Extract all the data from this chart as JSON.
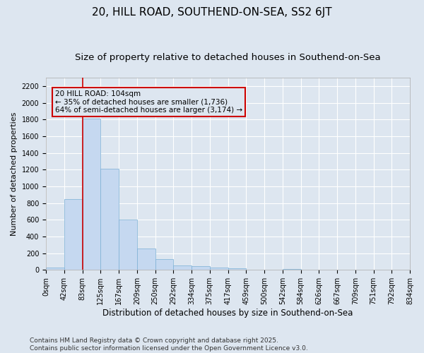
{
  "title": "20, HILL ROAD, SOUTHEND-ON-SEA, SS2 6JT",
  "subtitle": "Size of property relative to detached houses in Southend-on-Sea",
  "xlabel": "Distribution of detached houses by size in Southend-on-Sea",
  "ylabel": "Number of detached properties",
  "bar_values": [
    25,
    845,
    1810,
    1210,
    600,
    255,
    130,
    55,
    45,
    32,
    20,
    0,
    0,
    15,
    0,
    0,
    0,
    0,
    0,
    0
  ],
  "categories": [
    "0sqm",
    "42sqm",
    "83sqm",
    "125sqm",
    "167sqm",
    "209sqm",
    "250sqm",
    "292sqm",
    "334sqm",
    "375sqm",
    "417sqm",
    "459sqm",
    "500sqm",
    "542sqm",
    "584sqm",
    "626sqm",
    "667sqm",
    "709sqm",
    "751sqm",
    "792sqm",
    "834sqm"
  ],
  "bar_color": "#c5d8f0",
  "bar_edge_color": "#7bafd4",
  "background_color": "#dde6f0",
  "grid_color": "#ffffff",
  "vline_color": "#cc0000",
  "annotation_text": "20 HILL ROAD: 104sqm\n← 35% of detached houses are smaller (1,736)\n64% of semi-detached houses are larger (3,174) →",
  "annotation_box_color": "#cc0000",
  "ylim": [
    0,
    2300
  ],
  "yticks": [
    0,
    200,
    400,
    600,
    800,
    1000,
    1200,
    1400,
    1600,
    1800,
    2000,
    2200
  ],
  "footer_text": "Contains HM Land Registry data © Crown copyright and database right 2025.\nContains public sector information licensed under the Open Government Licence v3.0.",
  "title_fontsize": 11,
  "subtitle_fontsize": 9.5,
  "xlabel_fontsize": 8.5,
  "ylabel_fontsize": 8,
  "tick_fontsize": 7,
  "annotation_fontsize": 7.5,
  "footer_fontsize": 6.5
}
